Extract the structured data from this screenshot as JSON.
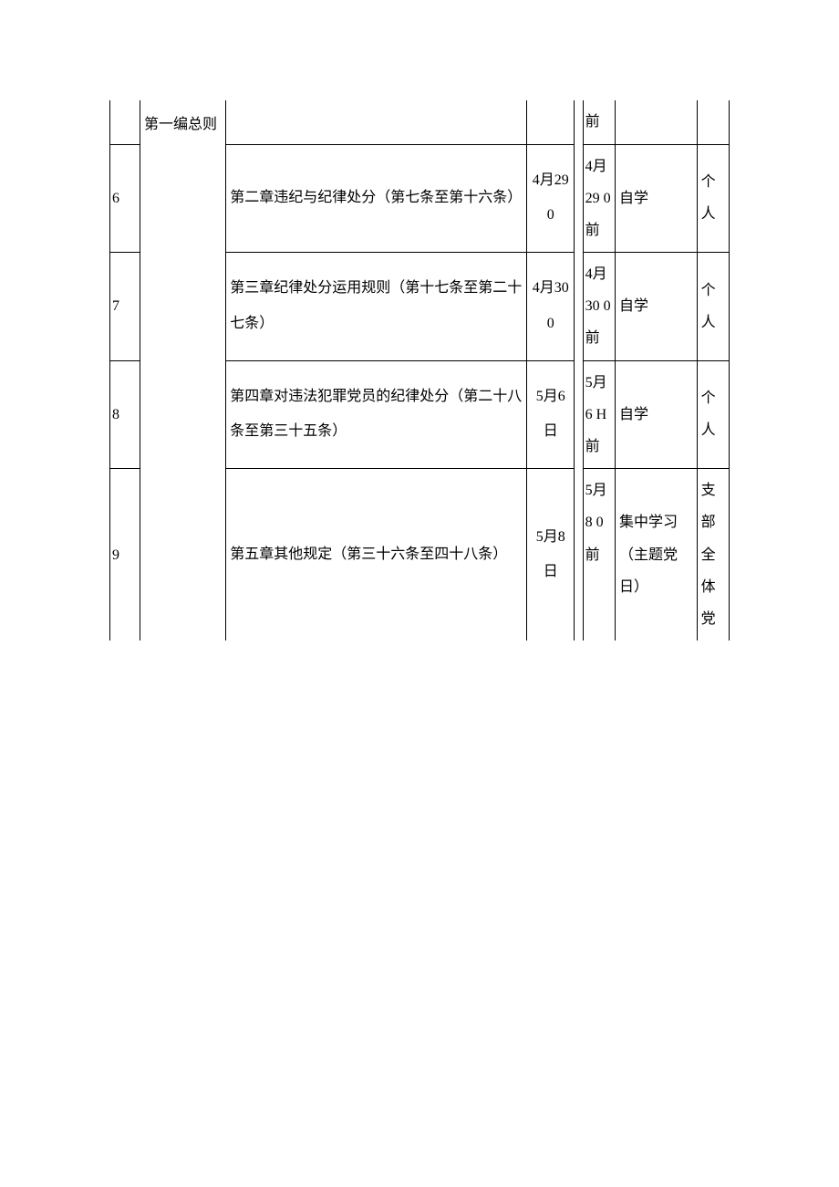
{
  "section_header": "第一编总则",
  "rows": [
    {
      "num": "",
      "content_stub": "",
      "date1_stub": "",
      "date2_stub": "前",
      "method_stub": "",
      "person_stub": ""
    },
    {
      "num": "6",
      "content": "第二章违纪与纪律处分（第七条至第十六条）",
      "date1": "4月29 0",
      "date2": "4月29 0前",
      "method": "自学",
      "person": "个人"
    },
    {
      "num": "7",
      "content": "第三章纪律处分运用规则（第十七条至第二十七条）",
      "date1": "4月30 0",
      "date2": "4月30 0前",
      "method": "自学",
      "person": "个人"
    },
    {
      "num": "8",
      "content": "第四章对违法犯罪党员的纪律处分（第二十八条至第三十五条）",
      "date1": "5月6日",
      "date2": "5月6 H前",
      "method": "自学",
      "person": "个人"
    },
    {
      "num": "9",
      "content": "第五章其他规定（第三十六条至四十八条）",
      "date1": "5月8日",
      "date2": "5月8 0前",
      "method": "集中学习（主题党日）",
      "person": "支部全体党"
    }
  ]
}
